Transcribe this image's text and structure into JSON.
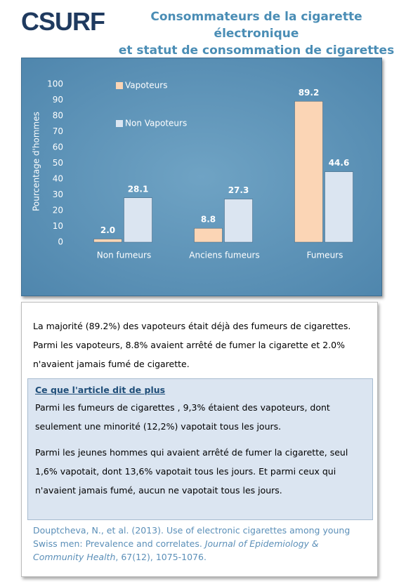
{
  "header": {
    "logo": "CSURF",
    "title_line1": "Consommateurs de la cigarette électronique",
    "title_line2": "et statut de consommation de cigarettes"
  },
  "chart_data": {
    "type": "bar",
    "y_label": "Pourcentage d'hommes",
    "categories": [
      "Non fumeurs",
      "Anciens fumeurs",
      "Fumeurs"
    ],
    "series": [
      {
        "name": "Vapoteurs",
        "color": "#fbd5b5",
        "values": [
          2.0,
          8.8,
          89.2
        ],
        "value_labels": [
          "2.0",
          "8.8",
          "89.2"
        ]
      },
      {
        "name": "Non Vapoteurs",
        "color": "#dbe5f1",
        "values": [
          28.1,
          27.3,
          44.6
        ],
        "value_labels": [
          "28.1",
          "27.3",
          "44.6"
        ]
      }
    ],
    "ylim": [
      0,
      100
    ],
    "yticks": [
      0,
      10,
      20,
      30,
      40,
      50,
      60,
      70,
      80,
      90,
      100
    ],
    "grid": false,
    "legend": "top-left"
  },
  "summary": "La majorité (89.2%)  des vapoteurs était déjà des fumeurs de cigarettes.  Parmi les vapoteurs, 8.8% avaient arrêté de fumer la cigarette et 2.0% n'avaient jamais fumé de cigarette.",
  "more": {
    "heading": "Ce que l'article dit de plus",
    "paragraphs": [
      "Parmi les fumeurs de cigarettes , 9,3% étaient des vapoteurs, dont seulement une minorité (12,2%) vapotait tous les jours.",
      "Parmi les jeunes hommes qui avaient arrêté de fumer la cigarette, seul 1,6% vapotait, dont 13,6% vapotait tous les jours. Et parmi ceux qui n'avaient jamais fumé, aucun ne vapotait tous les jours."
    ]
  },
  "citation": {
    "text": "Douptcheva, N., et al. (2013).  Use of electronic cigarettes among young Swiss men: Prevalence and correlates. ",
    "journal": "Journal of Epidemiology & Community Health",
    "rest": ", 67(12), 1075-1076."
  }
}
